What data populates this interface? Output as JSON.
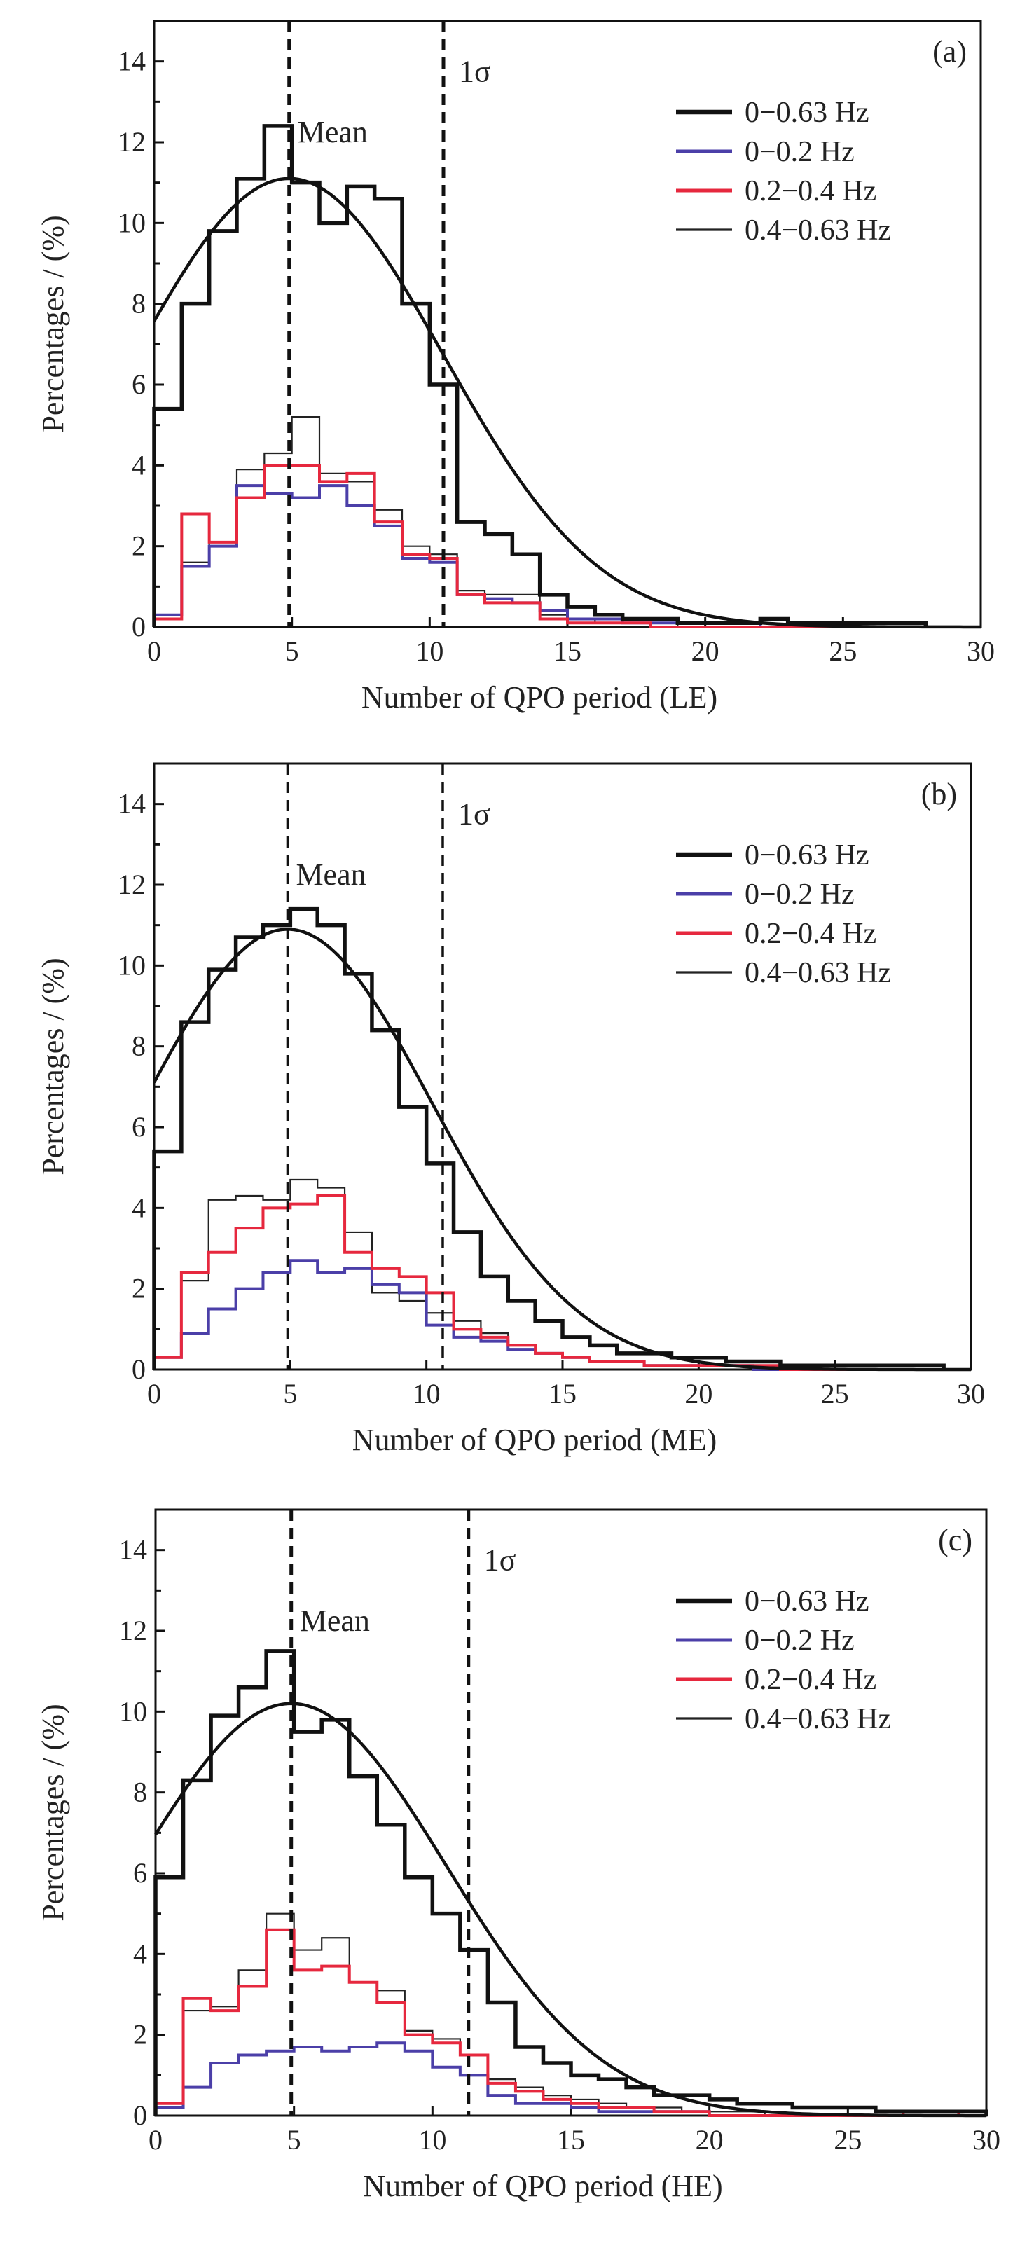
{
  "chart_data": [
    {
      "type": "histogram",
      "panel_label": "(a)",
      "xlabel": "Number of  QPO period (LE)",
      "ylabel": "Percentages / (%)",
      "xlim": [
        0,
        30
      ],
      "ylim": [
        0,
        15
      ],
      "xticks": [
        "0",
        "5",
        "10",
        "15",
        "20",
        "25",
        "30"
      ],
      "yticks": [
        "0",
        "2",
        "4",
        "6",
        "8",
        "10",
        "12",
        "14"
      ],
      "bin_width": 1,
      "bin_starts": [
        0,
        1,
        2,
        3,
        4,
        5,
        6,
        7,
        8,
        9,
        10,
        11,
        12,
        13,
        14,
        15,
        16,
        17,
        18,
        19,
        20,
        21,
        22,
        23,
        24,
        25,
        26,
        27
      ],
      "mean_line": {
        "x": 4.9,
        "label": "Mean"
      },
      "sigma_line": {
        "x": 10.5,
        "label": "1σ"
      },
      "fit": {
        "name": "Gaussian fit",
        "mean": 4.9,
        "sigma": 5.6,
        "peak": 11.1
      },
      "series": [
        {
          "name": "0−0.63 Hz",
          "color": "#111111",
          "width": "bold",
          "values": [
            5.4,
            8.0,
            9.8,
            11.1,
            12.4,
            11.0,
            10.0,
            10.9,
            10.6,
            8.0,
            6.0,
            2.6,
            2.3,
            1.8,
            0.8,
            0.5,
            0.3,
            0.2,
            0.2,
            0.1,
            0.1,
            0.1,
            0.2,
            0.1,
            0.1,
            0.1,
            0.1,
            0.1
          ]
        },
        {
          "name": "0−0.2 Hz",
          "color": "#4b3fa8",
          "width": "normal",
          "values": [
            0.3,
            1.5,
            2.0,
            3.5,
            3.3,
            3.2,
            3.5,
            3.0,
            2.5,
            1.7,
            1.6,
            0.8,
            0.7,
            0.6,
            0.4,
            0.2,
            0.2,
            0.1,
            0.1,
            0.1,
            0.1,
            0.1,
            0.0,
            0.0,
            0.0,
            0.0,
            0.0,
            0.0
          ]
        },
        {
          "name": "0.2−0.4 Hz",
          "color": "#e6283e",
          "width": "normal",
          "values": [
            0.2,
            2.8,
            2.1,
            3.2,
            4.0,
            4.0,
            3.6,
            3.8,
            2.6,
            1.8,
            1.7,
            0.8,
            0.6,
            0.6,
            0.2,
            0.1,
            0.1,
            0.1,
            0.0,
            0.0,
            0.0,
            0.0,
            0.0,
            0.0,
            0.0,
            0.1,
            0.1,
            0.1
          ]
        },
        {
          "name": "0.4−0.63 Hz",
          "color": "#222222",
          "width": "thin",
          "values": [
            0.2,
            1.6,
            2.1,
            3.9,
            4.3,
            5.2,
            3.8,
            3.6,
            2.9,
            2.0,
            1.8,
            0.9,
            0.8,
            0.8,
            0.3,
            0.2,
            0.1,
            0.1,
            0.1,
            0.0,
            0.0,
            0.0,
            0.0,
            0.0,
            0.0,
            0.0,
            0.0,
            0.0
          ]
        }
      ],
      "legend_position": "top-right"
    },
    {
      "type": "histogram",
      "panel_label": "(b)",
      "xlabel": "Number of  QPO period (ME)",
      "ylabel": "Percentages / (%)",
      "xlim": [
        0,
        30
      ],
      "ylim": [
        0,
        15
      ],
      "xticks": [
        "0",
        "5",
        "10",
        "15",
        "20",
        "25",
        "30"
      ],
      "yticks": [
        "0",
        "2",
        "4",
        "6",
        "8",
        "10",
        "12",
        "14"
      ],
      "bin_width": 1,
      "bin_starts": [
        0,
        1,
        2,
        3,
        4,
        5,
        6,
        7,
        8,
        9,
        10,
        11,
        12,
        13,
        14,
        15,
        16,
        17,
        18,
        19,
        20,
        21,
        22,
        23,
        24,
        25,
        26,
        27,
        28
      ],
      "mean_line": {
        "x": 4.9,
        "label": "Mean"
      },
      "sigma_line": {
        "x": 10.6,
        "label": "1σ"
      },
      "fit": {
        "name": "Gaussian fit",
        "mean": 4.9,
        "sigma": 5.3,
        "peak": 10.9
      },
      "series": [
        {
          "name": "0−0.63 Hz",
          "color": "#111111",
          "width": "bold",
          "values": [
            5.4,
            8.6,
            9.9,
            10.7,
            11.0,
            11.4,
            11.0,
            9.8,
            8.4,
            6.5,
            5.1,
            3.4,
            2.3,
            1.7,
            1.2,
            0.8,
            0.6,
            0.4,
            0.4,
            0.3,
            0.3,
            0.2,
            0.2,
            0.1,
            0.1,
            0.1,
            0.1,
            0.1,
            0.1
          ]
        },
        {
          "name": "0−0.2 Hz",
          "color": "#4b3fa8",
          "width": "normal",
          "values": [
            0.3,
            0.9,
            1.5,
            2.0,
            2.4,
            2.7,
            2.4,
            2.5,
            2.1,
            1.9,
            1.1,
            0.8,
            0.7,
            0.5,
            0.4,
            0.3,
            0.2,
            0.2,
            0.1,
            0.1,
            0.1,
            0.1,
            0.0,
            0.0,
            0.0,
            0.0,
            0.0,
            0.0,
            0.0
          ]
        },
        {
          "name": "0.2−0.4 Hz",
          "color": "#e6283e",
          "width": "normal",
          "values": [
            0.3,
            2.4,
            2.9,
            3.5,
            4.0,
            4.1,
            4.3,
            2.9,
            2.5,
            2.3,
            1.9,
            1.0,
            0.8,
            0.6,
            0.4,
            0.3,
            0.2,
            0.2,
            0.1,
            0.1,
            0.1,
            0.1,
            0.1,
            0.0,
            0.0,
            0.0,
            0.0,
            0.0,
            0.0
          ]
        },
        {
          "name": "0.4−0.63 Hz",
          "color": "#222222",
          "width": "thin",
          "values": [
            0.3,
            2.2,
            4.2,
            4.3,
            4.2,
            4.7,
            4.5,
            3.4,
            1.9,
            1.7,
            1.4,
            1.2,
            0.9,
            0.6,
            0.4,
            0.3,
            0.2,
            0.2,
            0.1,
            0.1,
            0.1,
            0.1,
            0.0,
            0.0,
            0.0,
            0.0,
            0.0,
            0.0,
            0.0
          ]
        }
      ],
      "legend_position": "top-right"
    },
    {
      "type": "histogram",
      "panel_label": "(c)",
      "xlabel": "Number of  QPO period (HE)",
      "ylabel": "Percentages / (%)",
      "xlim": [
        0,
        30
      ],
      "ylim": [
        0,
        15
      ],
      "xticks": [
        "0",
        "5",
        "10",
        "15",
        "20",
        "25",
        "30"
      ],
      "yticks": [
        "0",
        "2",
        "4",
        "6",
        "8",
        "10",
        "12",
        "14"
      ],
      "bin_width": 1,
      "bin_starts": [
        0,
        1,
        2,
        3,
        4,
        5,
        6,
        7,
        8,
        9,
        10,
        11,
        12,
        13,
        14,
        15,
        16,
        17,
        18,
        19,
        20,
        21,
        22,
        23,
        24,
        25,
        26,
        27,
        28,
        29
      ],
      "mean_line": {
        "x": 4.9,
        "label": "Mean"
      },
      "sigma_line": {
        "x": 11.3,
        "label": "1σ"
      },
      "fit": {
        "name": "Gaussian fit",
        "mean": 4.9,
        "sigma": 5.6,
        "peak": 10.2
      },
      "series": [
        {
          "name": "0−0.63 Hz",
          "color": "#111111",
          "width": "bold",
          "values": [
            5.9,
            8.3,
            9.9,
            10.6,
            11.5,
            9.5,
            9.8,
            8.4,
            7.2,
            5.9,
            5.0,
            4.1,
            2.8,
            1.7,
            1.3,
            1.0,
            0.9,
            0.7,
            0.5,
            0.5,
            0.4,
            0.3,
            0.3,
            0.2,
            0.2,
            0.2,
            0.1,
            0.1,
            0.1,
            0.1
          ]
        },
        {
          "name": "0−0.2 Hz",
          "color": "#4b3fa8",
          "width": "normal",
          "values": [
            0.2,
            0.7,
            1.3,
            1.5,
            1.6,
            1.7,
            1.6,
            1.7,
            1.8,
            1.6,
            1.2,
            1.0,
            0.5,
            0.3,
            0.3,
            0.2,
            0.1,
            0.1,
            0.1,
            0.1,
            0.0,
            0.0,
            0.0,
            0.0,
            0.0,
            0.0,
            0.0,
            0.0,
            0.0,
            0.0
          ]
        },
        {
          "name": "0.2−0.4 Hz",
          "color": "#e6283e",
          "width": "normal",
          "values": [
            0.3,
            2.9,
            2.6,
            3.2,
            4.6,
            3.6,
            3.7,
            3.3,
            2.8,
            2.0,
            1.8,
            1.5,
            0.8,
            0.6,
            0.4,
            0.3,
            0.2,
            0.2,
            0.1,
            0.1,
            0.0,
            0.0,
            0.0,
            0.0,
            0.0,
            0.0,
            0.0,
            0.1,
            0.1,
            0.0
          ]
        },
        {
          "name": "0.4−0.63 Hz",
          "color": "#222222",
          "width": "thin",
          "values": [
            0.3,
            2.6,
            2.7,
            3.6,
            5.0,
            4.1,
            4.4,
            3.3,
            3.1,
            2.1,
            1.9,
            1.5,
            0.9,
            0.7,
            0.5,
            0.4,
            0.3,
            0.2,
            0.2,
            0.1,
            0.1,
            0.1,
            0.0,
            0.0,
            0.0,
            0.0,
            0.0,
            0.0,
            0.0,
            0.0
          ]
        }
      ],
      "legend_position": "top-right"
    }
  ]
}
